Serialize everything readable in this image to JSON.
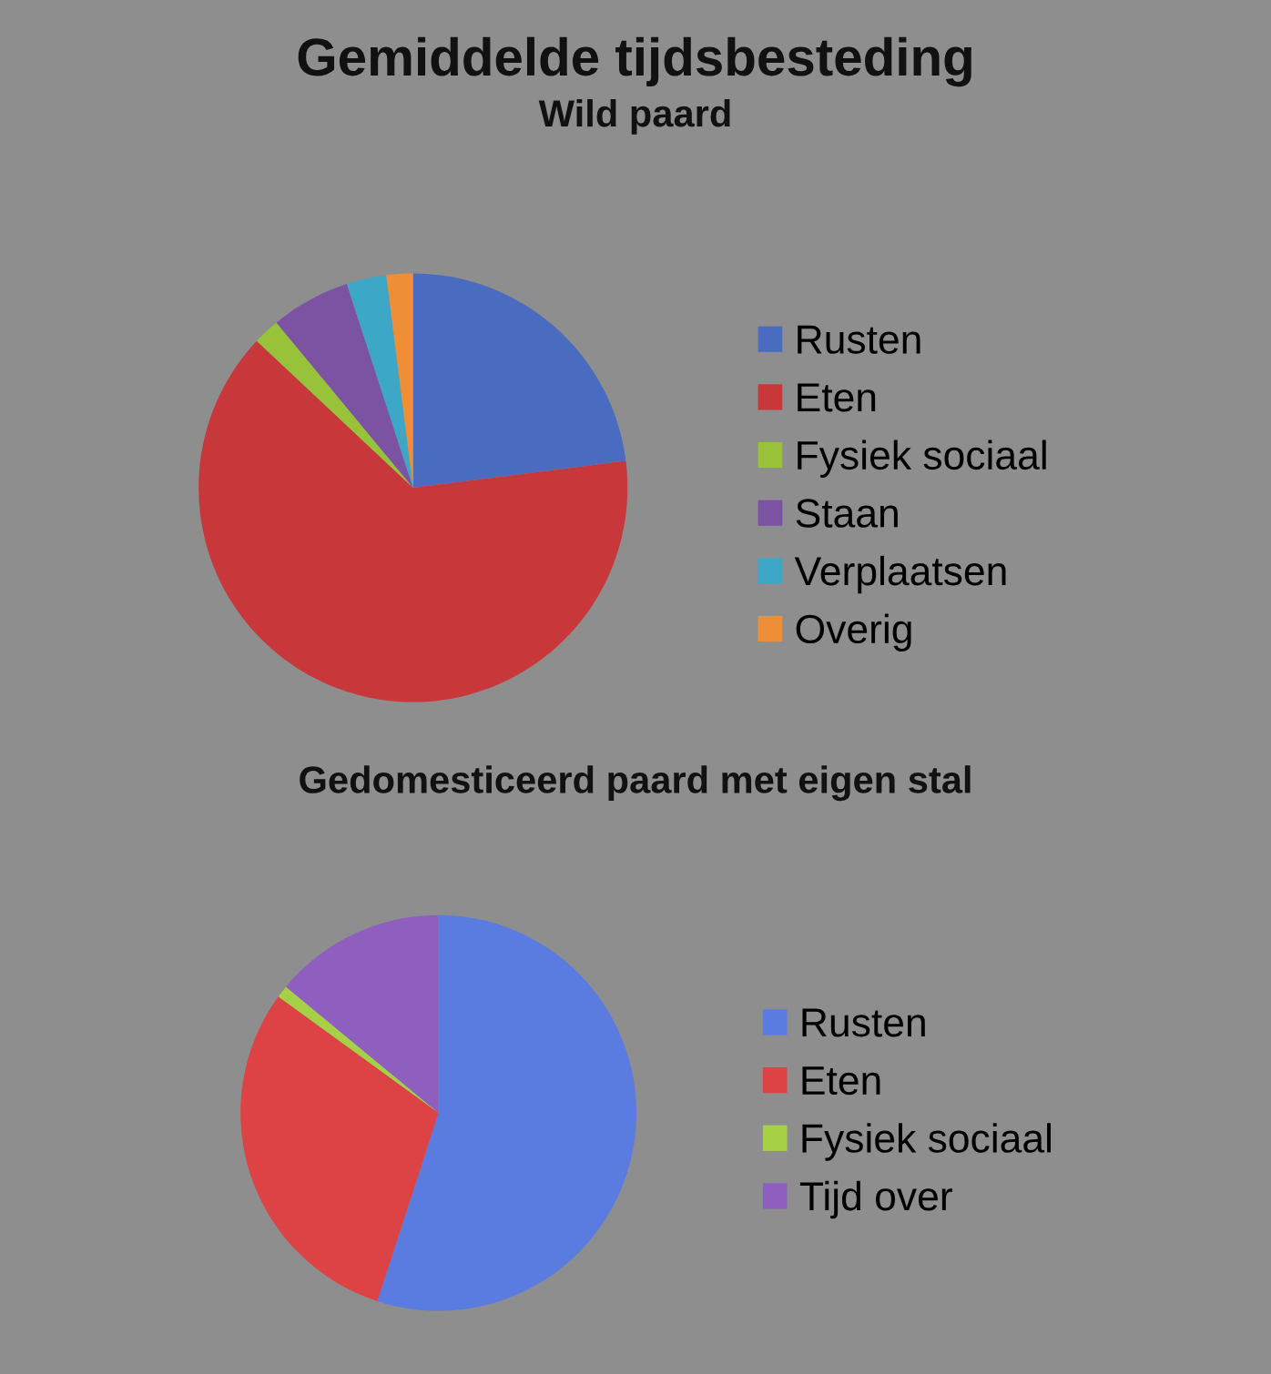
{
  "chart_data": [
    {
      "type": "pie",
      "title": "Gemiddelde tijdsbesteding",
      "subtitle": "Wild paard",
      "categories": [
        "Rusten",
        "Eten",
        "Fysiek sociaal",
        "Staan",
        "Verplaatsen",
        "Overig"
      ],
      "values": [
        23,
        64,
        2,
        6,
        3,
        2
      ],
      "colors": [
        "#4a6cc0",
        "#c8373a",
        "#98c23a",
        "#7c52a3",
        "#3da7c8",
        "#ee8e36"
      ],
      "legend": "right"
    },
    {
      "type": "pie",
      "title": "Gedomesticeerd paard met eigen stal",
      "categories": [
        "Rusten",
        "Eten",
        "Fysiek sociaal",
        "Tijd over"
      ],
      "values": [
        55,
        30,
        1,
        14
      ],
      "colors": [
        "#5a7ce0",
        "#dd4245",
        "#a6d046",
        "#8f5fbf"
      ],
      "legend": "right"
    }
  ]
}
